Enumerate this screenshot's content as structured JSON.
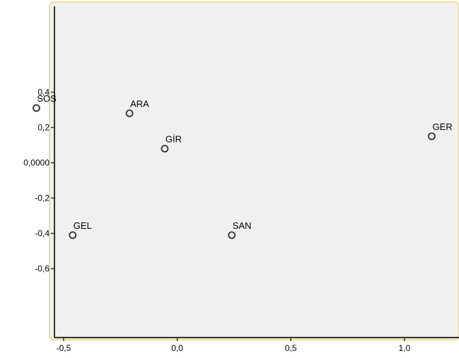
{
  "colors": {
    "page_background": "#ffffff",
    "plot_background": "#f0f0f0",
    "frame_border": "#f3dc8a",
    "axis": "#333333",
    "marker_stroke": "#333333",
    "marker_fill": "#f0f0f0"
  },
  "chart_data": {
    "type": "scatter",
    "xlim": [
      -0.78,
      1.24
    ],
    "ylim": [
      -0.99,
      0.91
    ],
    "grid": false,
    "legend": "none",
    "x_ticks": [
      {
        "value": -0.5,
        "label": "-0,5"
      },
      {
        "value": 0.0,
        "label": "0,0"
      },
      {
        "value": 0.5,
        "label": "0,5"
      },
      {
        "value": 1.0,
        "label": "1,0"
      }
    ],
    "y_ticks": [
      {
        "value": 0.4,
        "label": "0,4"
      },
      {
        "value": 0.2,
        "label": "0,2"
      },
      {
        "value": 0.0,
        "label": "0,0000"
      },
      {
        "value": -0.2,
        "label": "-0,2"
      },
      {
        "value": -0.4,
        "label": "-0,4"
      },
      {
        "value": -0.6,
        "label": "-0,6"
      }
    ],
    "points": [
      {
        "label": "SOS",
        "x": -0.62,
        "y": 0.31
      },
      {
        "label": "ARA",
        "x": -0.21,
        "y": 0.28
      },
      {
        "label": "GİR",
        "x": -0.055,
        "y": 0.08
      },
      {
        "label": "GER",
        "x": 1.12,
        "y": 0.15
      },
      {
        "label": "GEL",
        "x": -0.46,
        "y": -0.41
      },
      {
        "label": "SAN",
        "x": 0.24,
        "y": -0.41
      }
    ]
  }
}
